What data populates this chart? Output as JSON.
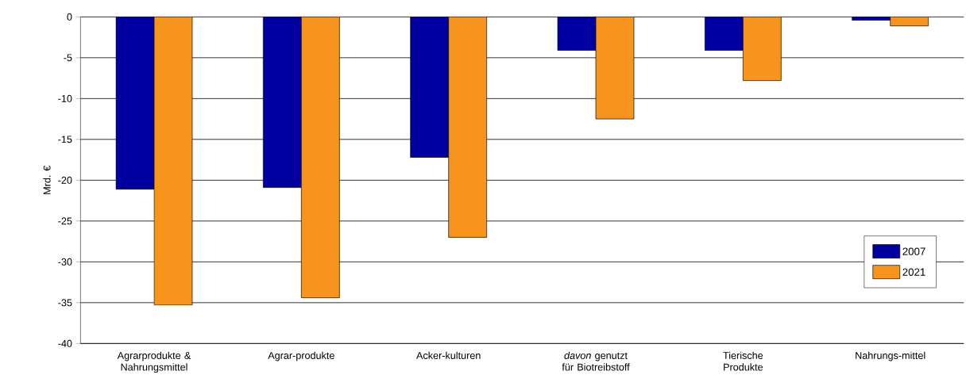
{
  "chart_data": {
    "type": "bar",
    "ylabel": "Mrd. €",
    "categories": [
      "Agrarprodukte & Nahrungsmittel",
      "Agrar-produkte",
      "Acker-kulturen",
      "*davon* genutzt für Biotreibstoff",
      "Tierische Produkte",
      "Nahrungs-mittel"
    ],
    "series": [
      {
        "name": "2007",
        "color": "#0000a0",
        "values": [
          -21.1,
          -20.9,
          -17.2,
          -4.1,
          -4.1,
          -0.4
        ]
      },
      {
        "name": "2021",
        "color": "#f7941d",
        "values": [
          -35.3,
          -34.4,
          -27.0,
          -12.5,
          -7.8,
          -1.1
        ]
      }
    ],
    "ylim": [
      -40,
      0
    ],
    "yticks": [
      -40,
      -35,
      -30,
      -25,
      -20,
      -15,
      -10,
      -5,
      0
    ],
    "grid": "y",
    "legend": "bottom right"
  }
}
